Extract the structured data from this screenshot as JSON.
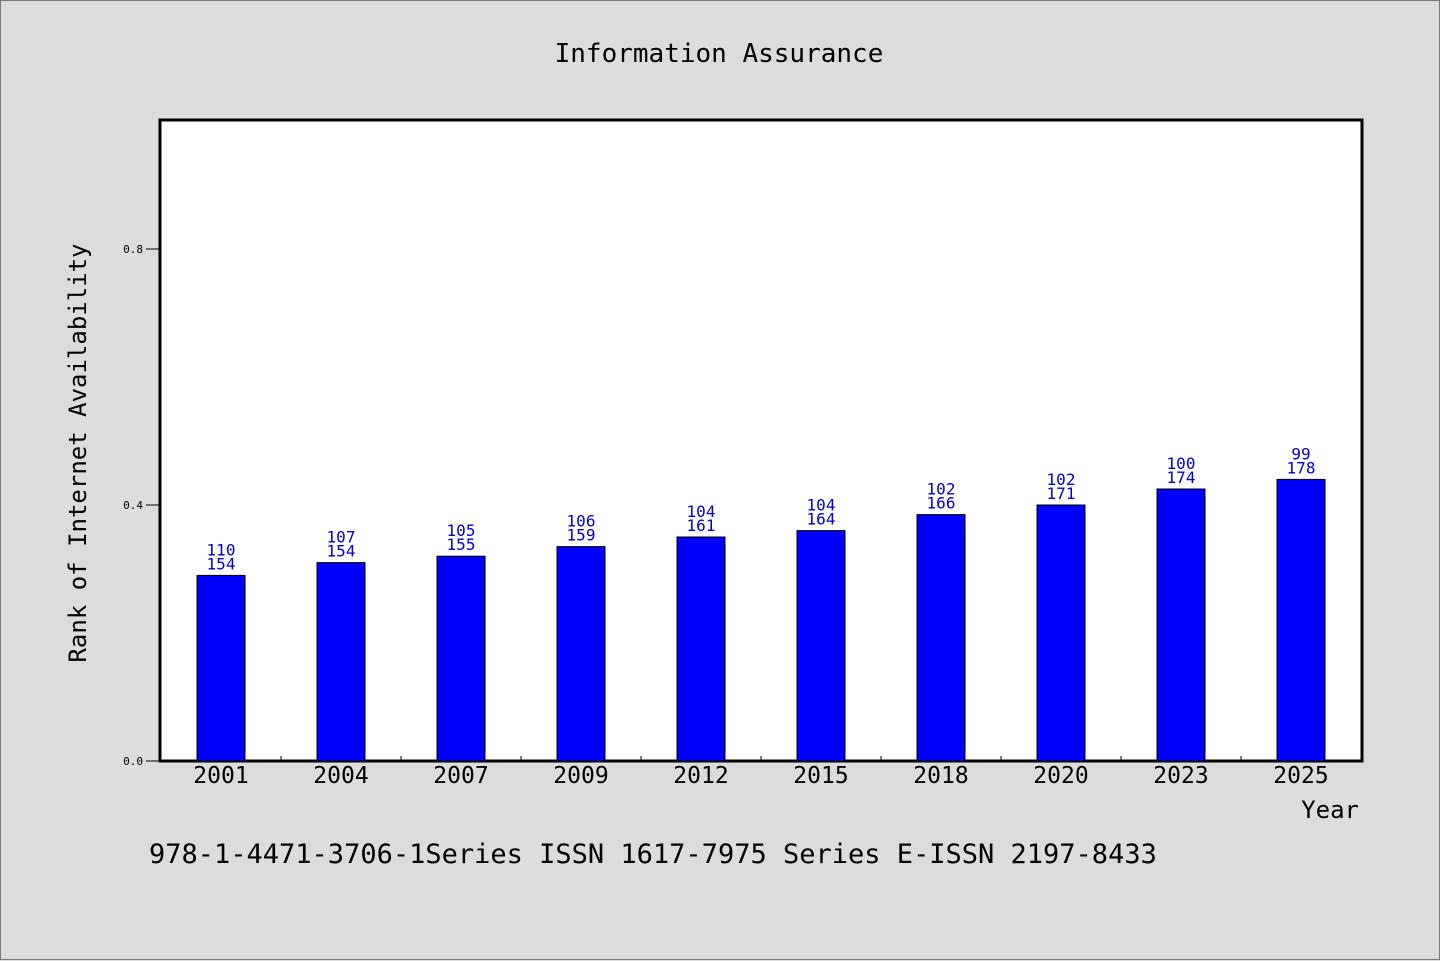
{
  "chart_data": {
    "type": "bar",
    "title": "Information Assurance",
    "xlabel": "Year",
    "ylabel": "Rank of Internet Availability",
    "categories": [
      "2001",
      "2004",
      "2007",
      "2009",
      "2012",
      "2015",
      "2018",
      "2020",
      "2023",
      "2025"
    ],
    "values": [
      0.29,
      0.31,
      0.32,
      0.335,
      0.35,
      0.36,
      0.385,
      0.4,
      0.425,
      0.44
    ],
    "data_labels": [
      [
        "110",
        "154"
      ],
      [
        "107",
        "154"
      ],
      [
        "105",
        "155"
      ],
      [
        "106",
        "159"
      ],
      [
        "104",
        "161"
      ],
      [
        "104",
        "164"
      ],
      [
        "102",
        "166"
      ],
      [
        "102",
        "171"
      ],
      [
        "100",
        "174"
      ],
      [
        "99",
        "178"
      ]
    ],
    "yticks": [
      "0.0",
      "0.4",
      "0.8"
    ],
    "ylim": [
      0,
      1.0
    ],
    "grid": false,
    "bar_color": "#0000ff",
    "label_color": "#0000cc"
  },
  "footer": {
    "text": "978-1-4471-3706-1Series ISSN 1617-7975 Series E-ISSN 2197-8433"
  },
  "colors": {
    "background": "#dcdcdc",
    "plot_background": "#ffffff"
  }
}
